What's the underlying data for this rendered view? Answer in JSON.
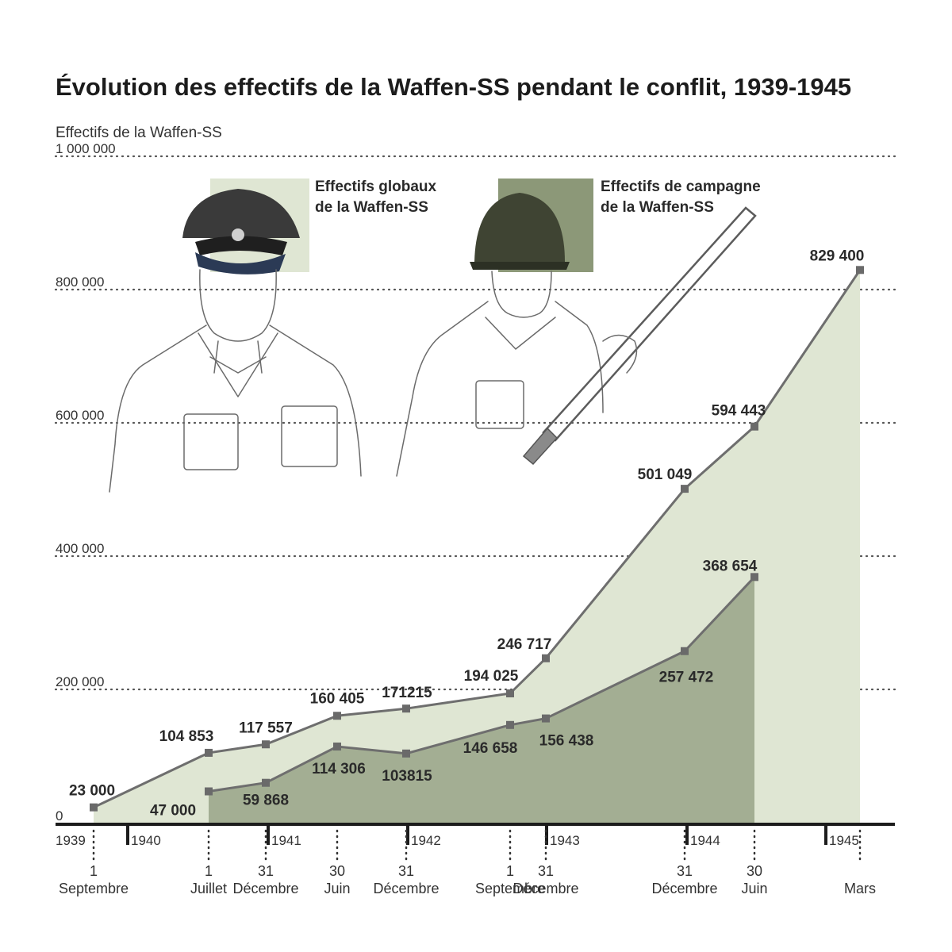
{
  "chart_data": {
    "type": "area",
    "title": "Évolution des effectifs de la Waffen-SS pendant le conflit, 1939-1945",
    "ylabel": "Effectifs de la Waffen-SS",
    "ylim": [
      0,
      1000000
    ],
    "yticks": [
      {
        "value": 0,
        "label": "0"
      },
      {
        "value": 200000,
        "label": "200 000"
      },
      {
        "value": 400000,
        "label": "400 000"
      },
      {
        "value": 600000,
        "label": "600 000"
      },
      {
        "value": 800000,
        "label": "800 000"
      },
      {
        "value": 1000000,
        "label": "1 000 000"
      }
    ],
    "grid": true,
    "years": [
      "1939",
      "1940",
      "1941",
      "1942",
      "1943",
      "1944",
      "1945"
    ],
    "dates": [
      {
        "date": "1939-09-01",
        "day": "1",
        "month": "Septembre"
      },
      {
        "date": "1940-07-01",
        "day": "1",
        "month": "Juillet"
      },
      {
        "date": "1940-12-31",
        "day": "31",
        "month": "Décembre"
      },
      {
        "date": "1941-06-30",
        "day": "30",
        "month": "Juin"
      },
      {
        "date": "1941-12-31",
        "day": "31",
        "month": "Décembre"
      },
      {
        "date": "1942-09-01",
        "day": "1",
        "month": "Septembre"
      },
      {
        "date": "1942-12-31",
        "day": "31",
        "month": "Décembre"
      },
      {
        "date": "1943-12-31",
        "day": "31",
        "month": "Décembre"
      },
      {
        "date": "1944-06-30",
        "day": "30",
        "month": "Juin"
      },
      {
        "date": "1945-03-31",
        "day": "",
        "month": "Mars"
      }
    ],
    "series": [
      {
        "name": "Effectifs globaux de la Waffen-SS",
        "color": "#dfe6d3",
        "points": [
          {
            "date": "1939-09-01",
            "value": 23000,
            "label": "23 000"
          },
          {
            "date": "1940-07-01",
            "value": 104853,
            "label": "104 853"
          },
          {
            "date": "1940-12-31",
            "value": 117557,
            "label": "117 557"
          },
          {
            "date": "1941-06-30",
            "value": 160405,
            "label": "160 405"
          },
          {
            "date": "1941-12-31",
            "value": 171215,
            "label": "171215"
          },
          {
            "date": "1942-09-01",
            "value": 194025,
            "label": "194 025"
          },
          {
            "date": "1942-12-31",
            "value": 246717,
            "label": "246 717"
          },
          {
            "date": "1943-12-31",
            "value": 501049,
            "label": "501 049"
          },
          {
            "date": "1944-06-30",
            "value": 594443,
            "label": "594 443"
          },
          {
            "date": "1945-03-31",
            "value": 829400,
            "label": "829 400"
          }
        ]
      },
      {
        "name": "Effectifs de campagne de la Waffen-SS",
        "color": "#a3ae93",
        "points": [
          {
            "date": "1940-07-01",
            "value": 47000,
            "label": "47 000"
          },
          {
            "date": "1940-12-31",
            "value": 59868,
            "label": "59 868"
          },
          {
            "date": "1941-06-30",
            "value": 114306,
            "label": "114 306"
          },
          {
            "date": "1941-12-31",
            "value": 103815,
            "label": "103815"
          },
          {
            "date": "1942-09-01",
            "value": 146658,
            "label": "146 658"
          },
          {
            "date": "1942-12-31",
            "value": 156438,
            "label": "156 438"
          },
          {
            "date": "1943-12-31",
            "value": 257472,
            "label": "257 472"
          },
          {
            "date": "1944-06-30",
            "value": 368654,
            "label": "368 654"
          }
        ]
      }
    ],
    "legend": [
      {
        "line1": "Effectifs globaux",
        "line2": "de la Waffen-SS",
        "swatch": "#dfe6d3"
      },
      {
        "line1": "Effectifs de campagne",
        "line2": "de la Waffen-SS",
        "swatch": "#8c9878"
      }
    ]
  }
}
